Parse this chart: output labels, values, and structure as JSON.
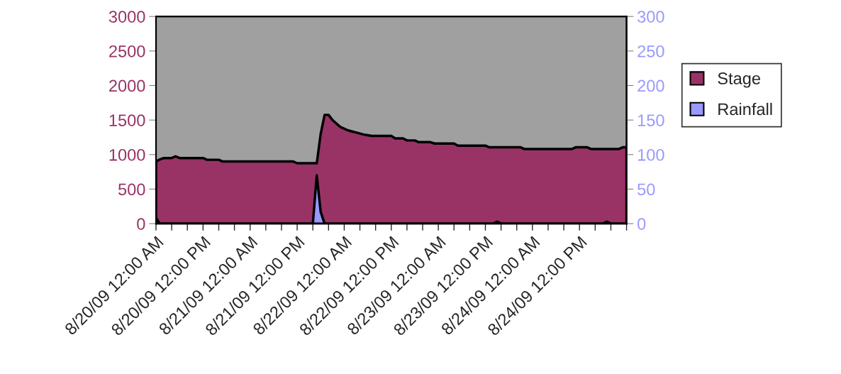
{
  "chart_data": {
    "type": "area",
    "categories": [
      "8/20/09 12:00 AM",
      null,
      null,
      null,
      null,
      null,
      null,
      null,
      null,
      null,
      null,
      null,
      "8/20/09 12:00 PM",
      null,
      null,
      null,
      null,
      null,
      null,
      null,
      null,
      null,
      null,
      null,
      "8/21/09 12:00 AM",
      null,
      null,
      null,
      null,
      null,
      null,
      null,
      null,
      null,
      null,
      null,
      "8/21/09 12:00 PM",
      null,
      null,
      null,
      null,
      null,
      null,
      null,
      null,
      null,
      null,
      null,
      "8/22/09 12:00 AM",
      null,
      null,
      null,
      null,
      null,
      null,
      null,
      null,
      null,
      null,
      null,
      "8/22/09 12:00 PM",
      null,
      null,
      null,
      null,
      null,
      null,
      null,
      null,
      null,
      null,
      null,
      "8/23/09 12:00 AM",
      null,
      null,
      null,
      null,
      null,
      null,
      null,
      null,
      null,
      null,
      null,
      "8/23/09 12:00 PM",
      null,
      null,
      null,
      null,
      null,
      null,
      null,
      null,
      null,
      null,
      null,
      "8/24/09 12:00 AM",
      null,
      null,
      null,
      null,
      null,
      null,
      null,
      null,
      null,
      null,
      null,
      "8/24/09 12:00 PM",
      null,
      null,
      null,
      null,
      null,
      null,
      null,
      null,
      null,
      null,
      null,
      null
    ],
    "ylim": [
      0,
      3000
    ],
    "yticks": [
      0,
      500,
      1000,
      1500,
      2000,
      2500,
      3000
    ],
    "y2lim": [
      0,
      300
    ],
    "y2ticks": [
      0,
      50,
      100,
      150,
      200,
      250,
      300
    ],
    "legend": "right",
    "grid": false,
    "series": [
      {
        "name": "Stage",
        "color": "#993366",
        "values": [
          900,
          930,
          950,
          950,
          950,
          975,
          950,
          950,
          950,
          950,
          950,
          950,
          950,
          925,
          925,
          925,
          925,
          900,
          900,
          900,
          900,
          900,
          900,
          900,
          900,
          900,
          900,
          900,
          900,
          900,
          900,
          900,
          900,
          900,
          900,
          900,
          875,
          875,
          875,
          875,
          875,
          875,
          1300,
          1575,
          1575,
          1500,
          1450,
          1400,
          1375,
          1350,
          1335,
          1320,
          1305,
          1290,
          1280,
          1270,
          1270,
          1270,
          1270,
          1270,
          1270,
          1235,
          1235,
          1235,
          1205,
          1205,
          1205,
          1180,
          1180,
          1180,
          1180,
          1160,
          1160,
          1160,
          1160,
          1160,
          1160,
          1130,
          1130,
          1130,
          1130,
          1130,
          1130,
          1130,
          1130,
          1105,
          1105,
          1105,
          1105,
          1105,
          1105,
          1105,
          1105,
          1105,
          1080,
          1080,
          1080,
          1080,
          1080,
          1080,
          1080,
          1080,
          1080,
          1080,
          1080,
          1080,
          1080,
          1105,
          1105,
          1105,
          1105,
          1080,
          1080,
          1080,
          1080,
          1080,
          1080,
          1080,
          1080,
          1105,
          1105
        ]
      },
      {
        "name": "Rainfall",
        "color": "#9999ff",
        "axis": "y2",
        "values": [
          8,
          0,
          0,
          0,
          0,
          0,
          0,
          0,
          0,
          0,
          0,
          0,
          0,
          0,
          0,
          0,
          0,
          0,
          0,
          0,
          0,
          0,
          0,
          0,
          0,
          0,
          0,
          0,
          0,
          0,
          0,
          0,
          0,
          0,
          0,
          0,
          0,
          0,
          0,
          0,
          0,
          70,
          17,
          0,
          0,
          0,
          0,
          0,
          0,
          0,
          0,
          0,
          0,
          0,
          0,
          0,
          0,
          0,
          0,
          0,
          0,
          0,
          0,
          0,
          0,
          0,
          0,
          0,
          0,
          0,
          0,
          0,
          0,
          0,
          0,
          0,
          0,
          0,
          0,
          0,
          0,
          0,
          0,
          0,
          0,
          0,
          0,
          3,
          0,
          0,
          0,
          0,
          0,
          0,
          0,
          0,
          0,
          0,
          0,
          0,
          0,
          0,
          0,
          0,
          0,
          0,
          0,
          0,
          0,
          0,
          0,
          0,
          0,
          0,
          0,
          3,
          0,
          0,
          0,
          0,
          0
        ]
      }
    ]
  }
}
